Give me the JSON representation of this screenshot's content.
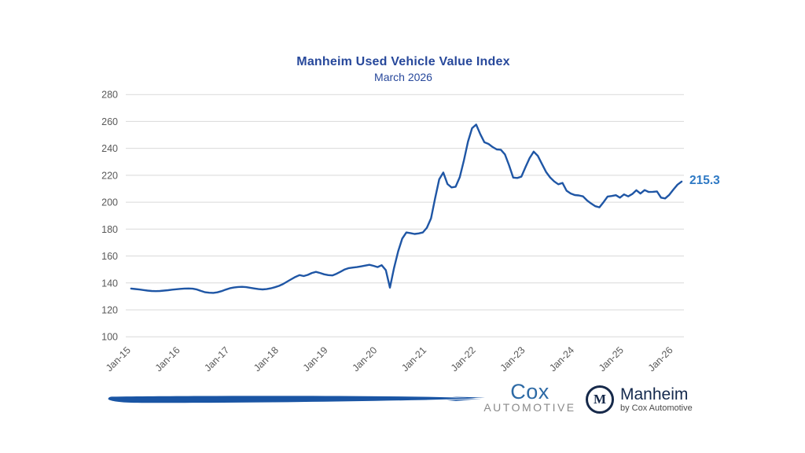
{
  "chart_data": {
    "type": "line",
    "title": "Manheim Used Vehicle Value Index",
    "subtitle": "March 2026",
    "series_name": "Manheim Used Vehicle Value Index",
    "frequency": "monthly",
    "x_start": "Jan-15",
    "x_end": "Mar-26",
    "x_tick_labels": [
      "Jan-15",
      "Jan-16",
      "Jan-17",
      "Jan-18",
      "Jan-19",
      "Jan-20",
      "Jan-21",
      "Jan-22",
      "Jan-23",
      "Jan-24",
      "Jan-25",
      "Jan-26"
    ],
    "y_ticks": [
      100,
      120,
      140,
      160,
      180,
      200,
      220,
      240,
      260,
      280
    ],
    "ylim": [
      100,
      280
    ],
    "grid": "horizontal",
    "legend": "none",
    "line_color": "#1f56a5",
    "last_value_label": "215.3",
    "last_value": 215.3,
    "values": [
      135.8,
      135.5,
      135.1,
      134.7,
      134.3,
      134.0,
      133.9,
      134.0,
      134.3,
      134.6,
      135.0,
      135.3,
      135.6,
      135.8,
      135.9,
      135.7,
      135.1,
      134.1,
      133.1,
      132.7,
      132.6,
      133.0,
      133.9,
      135.0,
      136.0,
      136.6,
      137.0,
      137.1,
      136.9,
      136.4,
      135.9,
      135.4,
      135.2,
      135.4,
      136.0,
      136.8,
      137.8,
      139.2,
      141.0,
      142.8,
      144.5,
      145.8,
      145.1,
      146.0,
      147.4,
      148.2,
      147.4,
      146.4,
      145.8,
      145.6,
      146.8,
      148.4,
      150.0,
      151.0,
      151.4,
      151.8,
      152.3,
      152.9,
      153.5,
      152.7,
      151.8,
      153.2,
      149.5,
      136.5,
      151.0,
      163.5,
      173.0,
      177.5,
      177.0,
      176.4,
      176.8,
      177.5,
      181.0,
      188.0,
      203.0,
      217.0,
      222.0,
      213.5,
      211.0,
      211.5,
      218.5,
      231.0,
      245.0,
      255.0,
      257.7,
      250.5,
      244.5,
      243.3,
      241.0,
      239.2,
      239.0,
      235.5,
      227.5,
      218.3,
      218.0,
      219.0,
      226.0,
      232.8,
      237.6,
      234.5,
      228.5,
      222.5,
      218.4,
      215.4,
      213.3,
      214.3,
      208.5,
      206.5,
      205.3,
      205.0,
      204.3,
      201.3,
      199.0,
      197.0,
      196.2,
      200.0,
      204.2,
      204.6,
      205.2,
      203.4,
      205.8,
      204.3,
      206.1,
      208.9,
      206.4,
      209.0,
      207.6,
      207.7,
      208.0,
      203.4,
      202.8,
      205.4,
      209.4,
      213.0,
      215.3
    ]
  },
  "branding": {
    "cox": {
      "name": "Cox",
      "sub": "AUTOMOTIVE"
    },
    "manheim": {
      "monogram": "M",
      "name": "Manheim",
      "sub": "by Cox Automotive"
    }
  },
  "colors": {
    "title": "#27489b",
    "line": "#1f56a5",
    "gridline": "#d9d9d9",
    "axis_labels": "#595959",
    "last_value": "#2e79c4",
    "swoosh": "#1a55a4",
    "cox_blue": "#2d6aa5",
    "cox_gray": "#8a8a8a",
    "manheim_navy": "#14294d"
  }
}
